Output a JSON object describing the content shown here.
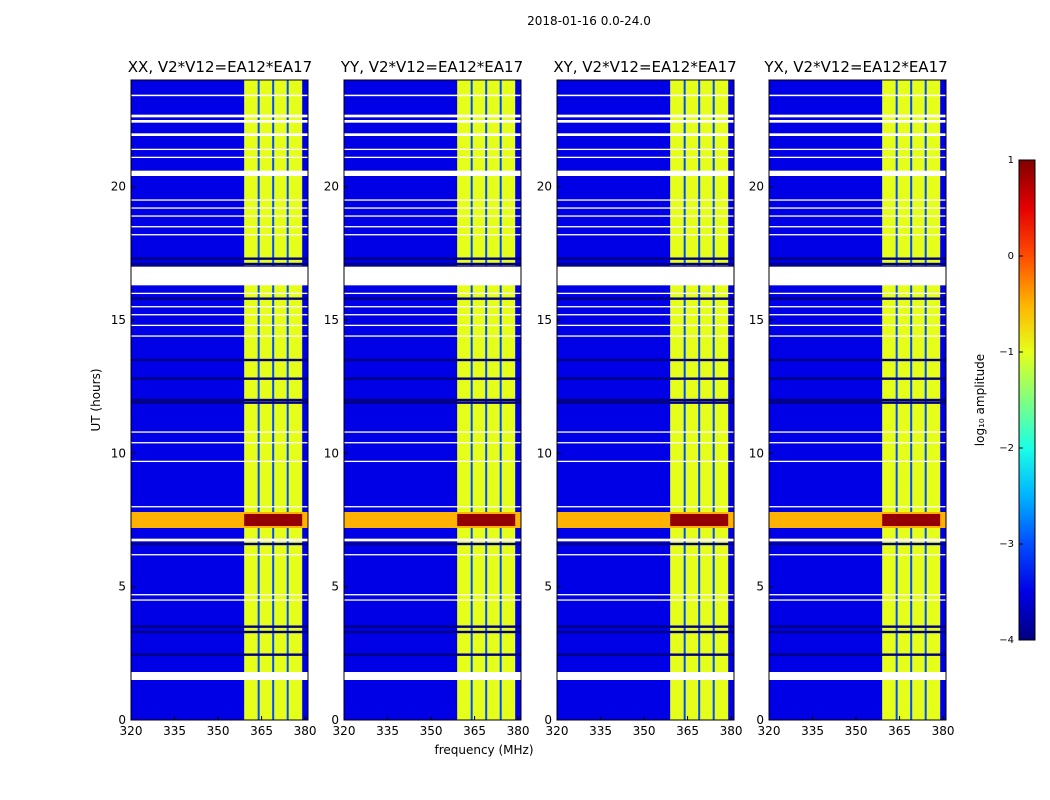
{
  "suptitle": "2018-01-16 0.0-24.0",
  "xlabel": "frequency (MHz)",
  "ylabel": "UT (hours)",
  "colorbar": {
    "label": "log₁₀ amplitude",
    "range": [
      -4,
      1
    ],
    "ticks": [
      1,
      0,
      -1,
      -2,
      -3,
      -4
    ],
    "tick_labels": [
      "1",
      "0",
      "−1",
      "−2",
      "−3",
      "−4"
    ],
    "colormap": "jet"
  },
  "chart_data": {
    "type": "heatmap",
    "title": "2018-01-16 0.0-24.0",
    "xlabel": "frequency (MHz)",
    "ylabel": "UT (hours)",
    "xlim": [
      320,
      381
    ],
    "ylim": [
      0,
      24
    ],
    "x_ticks": [
      320,
      335,
      350,
      365,
      380
    ],
    "y_ticks": [
      0,
      5,
      10,
      15,
      20
    ],
    "value_label": "log10 amplitude",
    "value_range": [
      -4,
      1
    ],
    "panels": [
      {
        "name": "XX",
        "title": "XX, V2*V12=EA12*EA17"
      },
      {
        "name": "YY",
        "title": "YY, V2*V12=EA12*EA17"
      },
      {
        "name": "XY",
        "title": "XY, V2*V12=EA12*EA17"
      },
      {
        "name": "YX",
        "title": "YX, V2*V12=EA12*EA17"
      }
    ],
    "background_level": -3.5,
    "band": {
      "freq_range": [
        359,
        379
      ],
      "level": -1.0,
      "channel_gap_freqs": [
        364,
        369,
        374
      ]
    },
    "strong_rfi": {
      "ut_range": [
        7.2,
        7.8
      ],
      "freq_range": [
        359,
        379
      ],
      "level": 0.9
    },
    "flagged_ut_ranges": [
      [
        1.5,
        1.8
      ],
      [
        6.7,
        6.8
      ],
      [
        16.3,
        17.0
      ],
      [
        20.4,
        20.6
      ],
      [
        21.9,
        22.0
      ],
      [
        22.4,
        22.5
      ],
      [
        22.6,
        22.7
      ],
      [
        23.4,
        23.45
      ]
    ],
    "dropout_ut": [
      2.45,
      3.3,
      3.5,
      6.6,
      11.9,
      12.0,
      12.8,
      13.5,
      15.8,
      17.0,
      17.1,
      17.3
    ],
    "line_flags_ut": [
      4.5,
      4.7,
      6.2,
      8.0,
      9.7,
      10.4,
      10.8,
      14.4,
      14.8,
      15.2,
      15.5,
      16.0,
      18.2,
      18.5,
      18.9,
      19.2,
      19.5,
      21.1,
      21.4
    ]
  }
}
